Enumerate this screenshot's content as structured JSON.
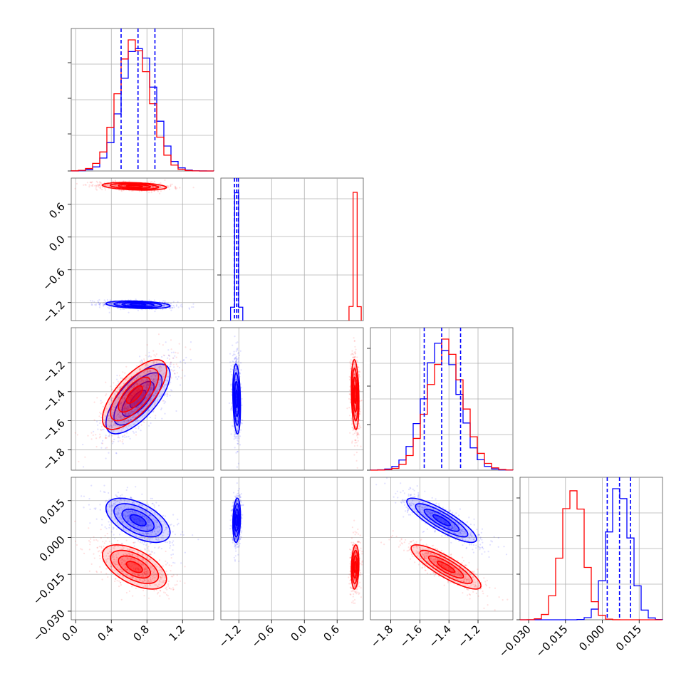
{
  "chart_data": {
    "type": "corner",
    "colors": {
      "blue": "#0000ff",
      "red": "#ff0000"
    },
    "parameters": [
      {
        "range": [
          -0.05,
          1.55
        ],
        "ticks": [
          0.0,
          0.4,
          0.8,
          1.2
        ],
        "tick_labels": [
          "0.0",
          "0.4",
          "0.8",
          "1.2"
        ]
      },
      {
        "range": [
          -1.53,
          1.08
        ],
        "ticks": [
          -1.2,
          -0.6,
          0.0,
          0.6
        ],
        "tick_labels": [
          "−1.2",
          "−0.6",
          "0.0",
          "0.6"
        ]
      },
      {
        "range": [
          -1.94,
          -0.96
        ],
        "ticks": [
          -1.8,
          -1.6,
          -1.4,
          -1.2
        ],
        "tick_labels": [
          "−1.8",
          "−1.6",
          "−1.4",
          "−1.2"
        ]
      },
      {
        "range": [
          -0.0335,
          0.0245
        ],
        "ticks": [
          -0.03,
          -0.015,
          0.0,
          0.015
        ],
        "tick_labels": [
          "−0.030",
          "−0.015",
          "0.000",
          "0.015"
        ]
      }
    ],
    "series": [
      {
        "color": "blue",
        "mean": [
          0.7,
          -1.24,
          -1.45,
          0.007
        ],
        "sd": [
          0.18,
          0.035,
          0.12,
          0.0045
        ],
        "corr_with_p0": [
          0,
          -0.3,
          0.7,
          -0.55
        ],
        "corr_p2_p3": -0.85,
        "quantiles": [
          [
            0.51,
            0.7,
            0.89
          ],
          [
            -1.28,
            -1.24,
            -1.21
          ],
          [
            -1.57,
            -1.45,
            -1.32
          ],
          [
            0.002,
            0.007,
            0.0115
          ]
        ]
      },
      {
        "color": "red",
        "mean": [
          0.66,
          0.93,
          -1.42,
          -0.012
        ],
        "sd": [
          0.18,
          0.035,
          0.12,
          0.0045
        ],
        "corr_with_p0": [
          0,
          -0.3,
          0.7,
          -0.55
        ],
        "corr_p2_p3": -0.85
      }
    ]
  }
}
